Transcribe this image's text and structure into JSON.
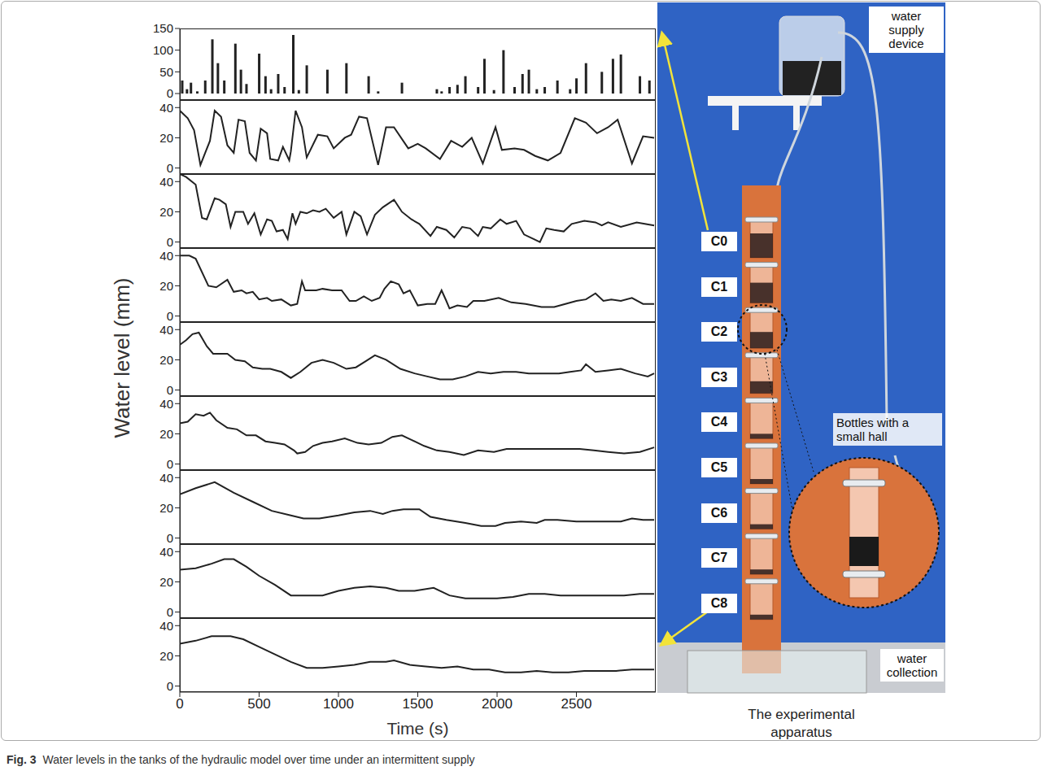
{
  "caption": {
    "label": "Fig. 3",
    "text": "Water levels in the tanks of the hydraulic model over time under an intermittent supply"
  },
  "ylabel": "Water level (mm)",
  "apparatus": {
    "title": "The experimental apparatus",
    "supply": "water supply device",
    "bottles": "Bottles with a small hall",
    "collection": "water collection",
    "tanks": [
      "C0",
      "C1",
      "C2",
      "C3",
      "C4",
      "C5",
      "C6",
      "C7",
      "C8"
    ]
  },
  "chart_data": [
    {
      "type": "bar",
      "color": "#222222",
      "tick_labels": "y",
      "xlim": [
        0,
        3000
      ],
      "xticks": [
        0,
        500,
        1000,
        1500,
        2000,
        2500
      ],
      "ylim": [
        -15,
        150
      ],
      "yticks": [
        0,
        50,
        100,
        150
      ],
      "x": [
        15,
        45,
        70,
        110,
        160,
        205,
        240,
        280,
        350,
        385,
        420,
        500,
        540,
        575,
        620,
        660,
        715,
        750,
        800,
        930,
        1050,
        1190,
        1250,
        1400,
        1620,
        1650,
        1700,
        1750,
        1800,
        1880,
        1920,
        1980,
        2040,
        2110,
        2160,
        2200,
        2250,
        2300,
        2380,
        2460,
        2500,
        2560,
        2660,
        2730,
        2780,
        2900,
        2960
      ],
      "values": [
        30,
        10,
        25,
        5,
        30,
        125,
        70,
        30,
        115,
        55,
        22,
        92,
        40,
        10,
        45,
        15,
        135,
        8,
        65,
        55,
        70,
        40,
        5,
        25,
        10,
        5,
        15,
        20,
        40,
        15,
        80,
        8,
        100,
        15,
        45,
        55,
        10,
        15,
        30,
        10,
        35,
        70,
        50,
        80,
        90,
        40,
        30
      ]
    },
    {
      "type": "line",
      "color": "#222222",
      "tick_labels": "y",
      "xlim": [
        0,
        3000
      ],
      "xticks": [
        0,
        500,
        1000,
        1500,
        2000,
        2500
      ],
      "ylim": [
        -4,
        45
      ],
      "yticks": [
        0,
        20,
        40
      ],
      "x": [
        0,
        50,
        90,
        130,
        190,
        220,
        260,
        300,
        340,
        370,
        410,
        440,
        480,
        510,
        550,
        570,
        620,
        650,
        690,
        700,
        730,
        770,
        800,
        870,
        930,
        970,
        1040,
        1080,
        1130,
        1180,
        1250,
        1300,
        1350,
        1440,
        1500,
        1550,
        1640,
        1710,
        1780,
        1840,
        1910,
        1990,
        2030,
        2110,
        2170,
        2240,
        2320,
        2400,
        2490,
        2560,
        2630,
        2700,
        2760,
        2850,
        2920,
        2990
      ],
      "values": [
        38,
        33,
        25,
        2,
        18,
        38,
        34,
        15,
        10,
        32,
        31,
        10,
        5,
        26,
        23,
        6,
        5,
        14,
        5,
        11,
        38,
        27,
        7,
        22,
        21,
        13,
        20,
        22,
        34,
        33,
        2,
        27,
        27,
        13,
        16,
        13,
        6,
        18,
        14,
        20,
        3,
        27,
        12,
        13,
        12,
        8,
        5,
        10,
        33,
        30,
        23,
        27,
        32,
        3,
        21,
        20
      ]
    },
    {
      "type": "line",
      "color": "#222222",
      "tick_labels": "y",
      "xlim": [
        0,
        3000
      ],
      "xticks": [
        0,
        500,
        1000,
        1500,
        2000,
        2500
      ],
      "ylim": [
        -4,
        45
      ],
      "yticks": [
        0,
        20,
        40
      ],
      "x": [
        0,
        40,
        100,
        140,
        170,
        220,
        250,
        290,
        320,
        350,
        400,
        430,
        470,
        510,
        550,
        580,
        610,
        650,
        680,
        710,
        730,
        760,
        800,
        840,
        880,
        920,
        970,
        1020,
        1050,
        1100,
        1140,
        1180,
        1230,
        1280,
        1350,
        1400,
        1460,
        1510,
        1580,
        1620,
        1680,
        1730,
        1780,
        1830,
        1880,
        1910,
        1960,
        2020,
        2060,
        2120,
        2170,
        2230,
        2270,
        2310,
        2360,
        2420,
        2470,
        2550,
        2620,
        2660,
        2700,
        2780,
        2880,
        2990
      ],
      "values": [
        45,
        43,
        38,
        16,
        15,
        29,
        28,
        25,
        10,
        20,
        20,
        12,
        19,
        5,
        15,
        14,
        7,
        8,
        2,
        19,
        12,
        20,
        19,
        21,
        20,
        22,
        16,
        20,
        5,
        20,
        17,
        5,
        18,
        23,
        28,
        20,
        15,
        12,
        4,
        10,
        8,
        3,
        10,
        9,
        4,
        10,
        9,
        15,
        12,
        14,
        5,
        2,
        0,
        9,
        8,
        7,
        12,
        14,
        13,
        11,
        13,
        10,
        13,
        11
      ]
    },
    {
      "type": "line",
      "color": "#222222",
      "tick_labels": "y",
      "xlim": [
        0,
        3000
      ],
      "xticks": [
        0,
        500,
        1000,
        1500,
        2000,
        2500
      ],
      "ylim": [
        -4,
        45
      ],
      "yticks": [
        0,
        20,
        40
      ],
      "x": [
        0,
        60,
        100,
        180,
        230,
        300,
        340,
        390,
        420,
        460,
        500,
        550,
        580,
        640,
        700,
        740,
        770,
        790,
        860,
        900,
        960,
        1020,
        1070,
        1110,
        1160,
        1210,
        1260,
        1290,
        1330,
        1380,
        1410,
        1450,
        1500,
        1560,
        1610,
        1650,
        1680,
        1700,
        1750,
        1810,
        1850,
        1920,
        2010,
        2090,
        2180,
        2280,
        2360,
        2430,
        2500,
        2560,
        2620,
        2670,
        2720,
        2780,
        2850,
        2920,
        2990
      ],
      "values": [
        40,
        40,
        38,
        20,
        19,
        24,
        16,
        17,
        15,
        16,
        11,
        12,
        10,
        11,
        7,
        8,
        23,
        17,
        17,
        18,
        17,
        17,
        10,
        10,
        13,
        10,
        12,
        18,
        23,
        21,
        15,
        17,
        7,
        8,
        8,
        17,
        10,
        5,
        7,
        6,
        10,
        10,
        12,
        9,
        8,
        6,
        6,
        8,
        10,
        11,
        15,
        10,
        11,
        10,
        12,
        8,
        8
      ]
    },
    {
      "type": "line",
      "color": "#222222",
      "tick_labels": "y",
      "xlim": [
        0,
        3000
      ],
      "xticks": [
        0,
        500,
        1000,
        1500,
        2000,
        2500
      ],
      "ylim": [
        -4,
        45
      ],
      "yticks": [
        0,
        20,
        40
      ],
      "x": [
        0,
        40,
        80,
        120,
        170,
        210,
        260,
        300,
        350,
        410,
        460,
        520,
        570,
        640,
        700,
        760,
        830,
        900,
        970,
        1050,
        1110,
        1170,
        1230,
        1300,
        1390,
        1480,
        1560,
        1640,
        1720,
        1800,
        1880,
        1960,
        2040,
        2120,
        2200,
        2300,
        2390,
        2460,
        2530,
        2560,
        2620,
        2700,
        2780,
        2870,
        2950,
        2990
      ],
      "values": [
        30,
        33,
        37,
        38,
        29,
        24,
        24,
        24,
        20,
        19,
        15,
        14,
        14,
        12,
        8,
        12,
        18,
        20,
        18,
        14,
        15,
        19,
        23,
        20,
        14,
        11,
        9,
        7,
        7,
        9,
        12,
        11,
        12,
        12,
        11,
        11,
        11,
        12,
        13,
        17,
        12,
        13,
        14,
        11,
        9,
        11
      ]
    },
    {
      "type": "line",
      "color": "#222222",
      "tick_labels": "y",
      "xlim": [
        0,
        3000
      ],
      "xticks": [
        0,
        500,
        1000,
        1500,
        2000,
        2500
      ],
      "ylim": [
        -4,
        45
      ],
      "yticks": [
        0,
        20,
        40
      ],
      "x": [
        0,
        50,
        100,
        150,
        190,
        230,
        300,
        360,
        420,
        480,
        540,
        600,
        660,
        720,
        740,
        790,
        840,
        900,
        960,
        1040,
        1120,
        1190,
        1270,
        1340,
        1400,
        1460,
        1540,
        1620,
        1700,
        1790,
        1880,
        1980,
        2060,
        2180,
        2300,
        2420,
        2520,
        2610,
        2700,
        2800,
        2900,
        2990
      ],
      "values": [
        27,
        28,
        33,
        32,
        34,
        29,
        24,
        23,
        19,
        19,
        15,
        14,
        13,
        9,
        7,
        8,
        12,
        14,
        15,
        17,
        14,
        13,
        14,
        18,
        19,
        16,
        12,
        9,
        8,
        6,
        9,
        8,
        10,
        10,
        10,
        10,
        10,
        9,
        8,
        7,
        8,
        11
      ]
    },
    {
      "type": "line",
      "color": "#222222",
      "tick_labels": "y",
      "xlim": [
        0,
        3000
      ],
      "xticks": [
        0,
        500,
        1000,
        1500,
        2000,
        2500
      ],
      "ylim": [
        -4,
        45
      ],
      "yticks": [
        0,
        20,
        40
      ],
      "x": [
        0,
        100,
        220,
        340,
        460,
        580,
        700,
        780,
        880,
        1000,
        1100,
        1200,
        1280,
        1340,
        1410,
        1510,
        1580,
        1680,
        1800,
        1900,
        1990,
        2050,
        2150,
        2250,
        2300,
        2380,
        2500,
        2600,
        2700,
        2740,
        2780,
        2850,
        2920,
        2990
      ],
      "values": [
        29,
        33,
        37,
        30,
        24,
        18,
        15,
        13,
        13,
        15,
        17,
        18,
        16,
        18,
        19,
        19,
        14,
        12,
        10,
        8,
        8,
        10,
        11,
        10,
        12,
        12,
        11,
        11,
        11,
        11,
        11,
        13,
        12,
        12
      ]
    },
    {
      "type": "line",
      "color": "#222222",
      "tick_labels": "y",
      "xlim": [
        0,
        3000
      ],
      "xticks": [
        0,
        500,
        1000,
        1500,
        2000,
        2500
      ],
      "ylim": [
        -4,
        45
      ],
      "yticks": [
        0,
        20,
        40
      ],
      "x": [
        0,
        100,
        200,
        280,
        340,
        420,
        500,
        600,
        700,
        800,
        900,
        1000,
        1100,
        1200,
        1300,
        1380,
        1480,
        1600,
        1700,
        1800,
        1900,
        2000,
        2100,
        2200,
        2300,
        2400,
        2500,
        2600,
        2700,
        2800,
        2900,
        2990
      ],
      "values": [
        28,
        29,
        32,
        35,
        35,
        30,
        24,
        18,
        11,
        11,
        11,
        14,
        16,
        17,
        16,
        14,
        14,
        16,
        11,
        9,
        9,
        9,
        10,
        12,
        12,
        11,
        11,
        11,
        11,
        11,
        12,
        12
      ]
    },
    {
      "type": "line",
      "color": "#222222",
      "xlabel": "Time (s)",
      "xlim": [
        0,
        3000
      ],
      "xticks": [
        0,
        500,
        1000,
        1500,
        2000,
        2500
      ],
      "ylim": [
        -4,
        45
      ],
      "yticks": [
        0,
        20,
        40
      ],
      "x": [
        0,
        100,
        200,
        320,
        400,
        500,
        600,
        700,
        800,
        900,
        1000,
        1100,
        1200,
        1300,
        1350,
        1450,
        1550,
        1650,
        1750,
        1850,
        1950,
        2050,
        2150,
        2250,
        2350,
        2450,
        2550,
        2650,
        2750,
        2850,
        2990
      ],
      "values": [
        28,
        30,
        33,
        33,
        31,
        26,
        21,
        16,
        12,
        12,
        13,
        14,
        16,
        16,
        17,
        14,
        13,
        12,
        13,
        11,
        11,
        9,
        9,
        10,
        9,
        9,
        10,
        10,
        10,
        11,
        11
      ]
    }
  ]
}
